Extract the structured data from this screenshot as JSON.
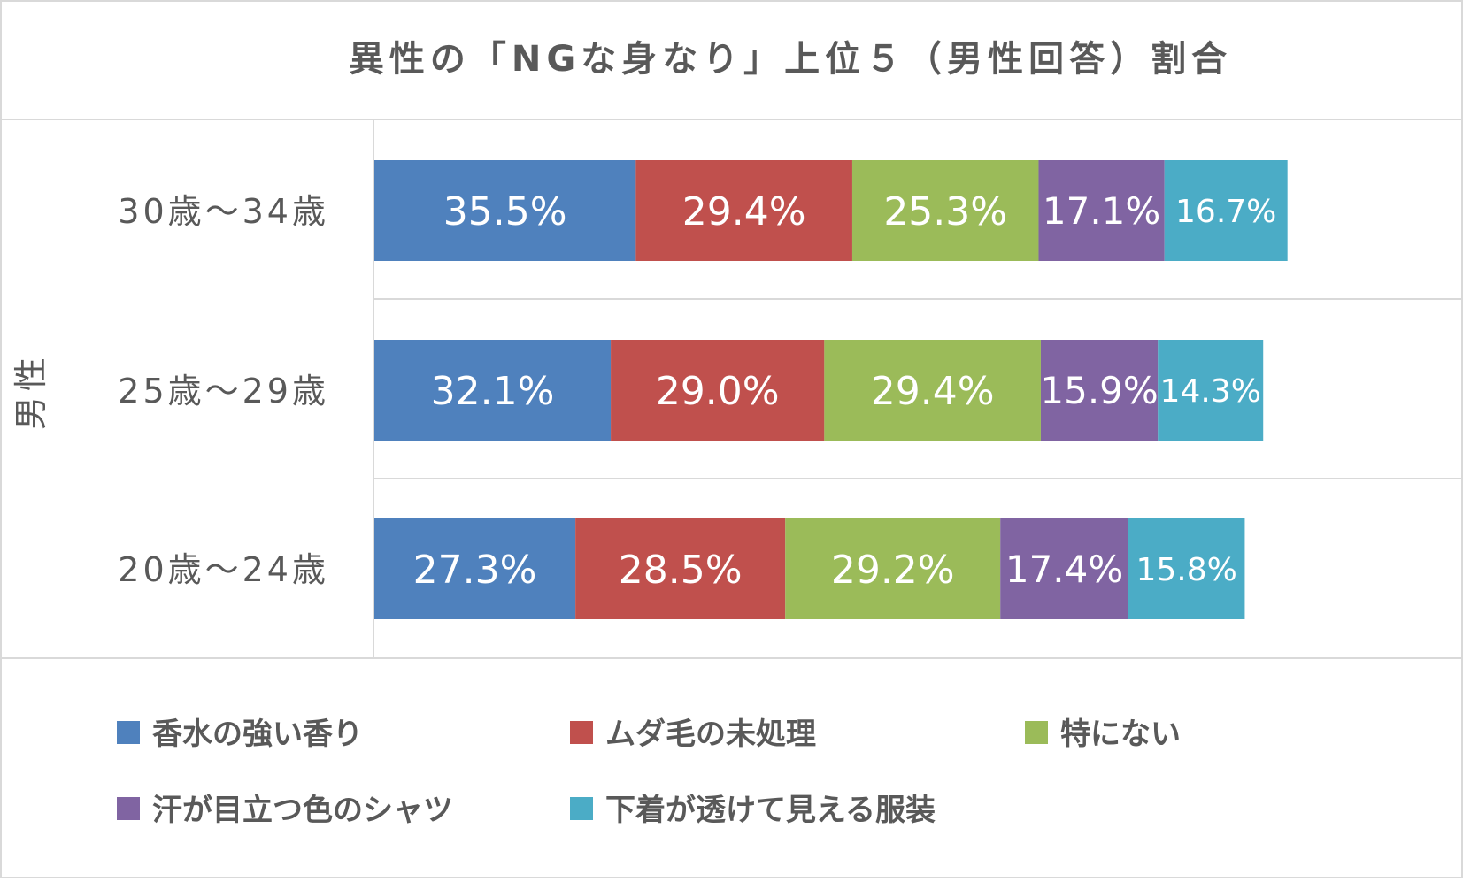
{
  "chart_data": {
    "type": "bar",
    "orientation": "horizontal",
    "stacked": true,
    "title": "異性の「NGな身なり」上位５（男性回答）割合",
    "group_label": "男性",
    "categories": [
      "30歳～34歳",
      "25歳～29歳",
      "20歳～24歳"
    ],
    "series": [
      {
        "name": "香水の強い香り",
        "color": "#4F81BD",
        "values": [
          35.5,
          32.1,
          27.3
        ],
        "labels": [
          "35.5%",
          "32.1%",
          "27.3%"
        ]
      },
      {
        "name": "ムダ毛の未処理",
        "color": "#C0504D",
        "values": [
          29.4,
          29.0,
          28.5
        ],
        "labels": [
          "29.4%",
          "29.0%",
          "28.5%"
        ]
      },
      {
        "name": "特にない",
        "color": "#9BBB59",
        "values": [
          25.3,
          29.4,
          29.2
        ],
        "labels": [
          "25.3%",
          "29.4%",
          "29.2%"
        ]
      },
      {
        "name": "汗が目立つ色のシャツ",
        "color": "#8064A2",
        "values": [
          17.1,
          15.9,
          17.4
        ],
        "labels": [
          "17.1%",
          "15.9%",
          "17.4%"
        ]
      },
      {
        "name": "下着が透けて見える服装",
        "color": "#4BACC6",
        "values": [
          16.7,
          14.3,
          15.8
        ],
        "labels": [
          "16.7%",
          "14.3%",
          "15.8%"
        ]
      }
    ],
    "legend_position": "bottom",
    "grid": false,
    "colors": {
      "border": "#D9D9D9",
      "text": "#595959",
      "label_text": "#FFFFFF"
    }
  }
}
